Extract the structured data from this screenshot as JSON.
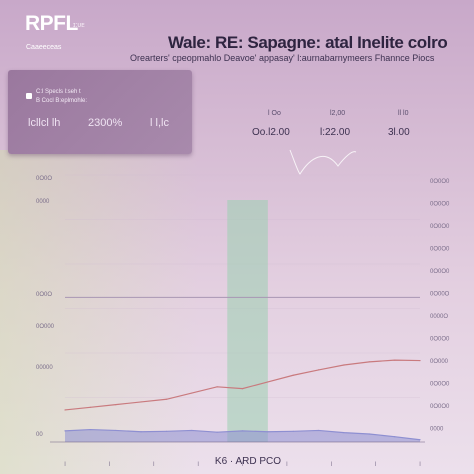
{
  "header": {
    "logo": "RPFL",
    "logo_sub": "ɪ:ᴜᴇ",
    "brand_caption": "Caaeeceas",
    "title": "Wale: RE: Sapagne: atal Inelite colro",
    "subtitle": "Orearters' cpeopmahlo Deavoe' appasay' l:aurnabarnymeers Fhannce Piocs"
  },
  "card": {
    "label": "C:l  Specls  l:seh  t",
    "sub": "B  Cocl  B:eplmohle:",
    "value_left": "lcllcl  lh",
    "value_mid": "2300%",
    "value_right": "l l,lc"
  },
  "stats": [
    {
      "top": "l Oo",
      "value": "Oo.l2.00"
    },
    {
      "top": "l2,00",
      "value": "l:22.00"
    },
    {
      "top": "ll l0",
      "value": "3l.00"
    }
  ],
  "chart_data": {
    "type": "line",
    "title": "",
    "xlabel": "",
    "ylabel": "",
    "left_ticks": [
      "0O0O",
      "0000",
      "0O0O",
      "0O000",
      "00000",
      "00"
    ],
    "right_ticks": [
      "0O0O0",
      "0O0O0",
      "0O0O0",
      "0O0O0",
      "0O0O0",
      "0O00O",
      "0000O",
      "0O0O0",
      "0O000",
      "0O0O0",
      "0O0O0",
      "0000"
    ],
    "x_tick_labels": [
      "l",
      "l",
      "l",
      "l",
      "l",
      "l",
      "l",
      "l",
      "l"
    ],
    "footer_label": "K6  ·  ARD  PCO",
    "x": [
      0,
      1,
      2,
      3,
      4,
      5,
      6,
      7,
      8,
      9,
      10,
      11,
      12,
      13,
      14
    ],
    "series": [
      {
        "values": [
          7.2,
          7.8,
          8.4,
          9.0,
          9.6,
          11.0,
          12.4,
          12.0,
          13.5,
          15.0,
          16.2,
          17.3,
          18.0,
          18.4,
          18.3
        ],
        "color": "#c97a7e"
      },
      {
        "values": [
          2.5,
          2.8,
          2.6,
          2.3,
          2.4,
          2.6,
          2.2,
          2.5,
          2.3,
          2.4,
          2.6,
          2.1,
          1.8,
          1.2,
          0.5
        ],
        "color": "#8e8fd1",
        "fill": true
      }
    ],
    "highlight_band": {
      "x_start": 6.4,
      "x_end": 8.0,
      "color": "#9ad0b0"
    },
    "reference_line": {
      "y": 32.5,
      "color": "#a896b3"
    },
    "ylim": [
      0,
      60
    ],
    "colors": {
      "grid": "#cdb8d0",
      "axis": "#6d5f80"
    }
  }
}
